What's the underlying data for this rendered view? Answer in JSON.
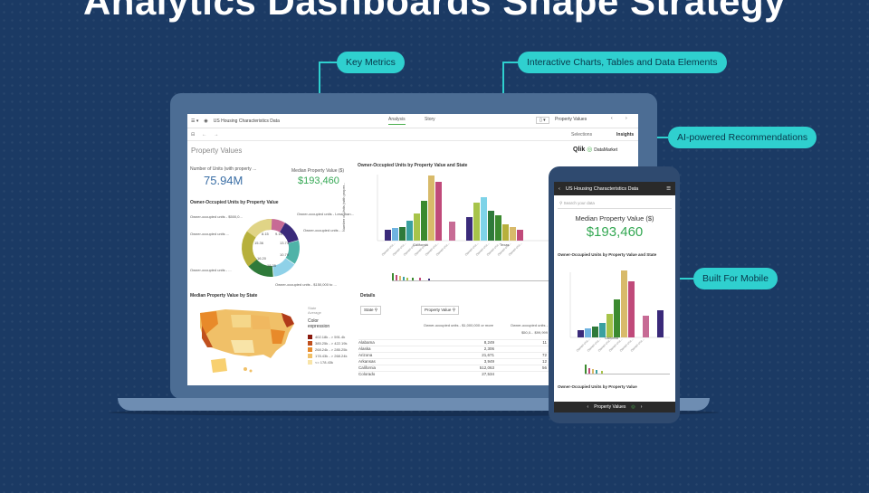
{
  "headline": "Analytics Dashboards Shape Strategy",
  "callouts": {
    "key_metrics": "Key Metrics",
    "interactive": "Interactive Charts, Tables and Data Elements",
    "ai": "AI-powered Recommendations",
    "mobile": "Built For Mobile"
  },
  "laptop": {
    "app_title": "US Housing Characteristics Data",
    "tabs": [
      "Analysis",
      "Story"
    ],
    "property_values_btn": "Property Values",
    "selections": "Selections",
    "insights": "Insights",
    "brand": "Qlik",
    "brand_sub": "DataMarket",
    "sheet_title": "Property Values",
    "kpi1_label": "Number of Units (with property ...",
    "kpi1_value": "75.94M",
    "kpi2_label": "Median Property Value ($)",
    "kpi2_value": "$193,460",
    "donut_title": "Owner-Occupied Units by Property Value",
    "donut_labels": [
      "Owner-occupied units - $500,0...",
      "Owner-occupied units - Less than...",
      "Owner-occupied units ...",
      "Owner-occupied units - ...",
      "Owner-occupied units - ...",
      "Owner-occupied units - $150,000 to ..."
    ],
    "donut_values": [
      "8.15",
      "9.16",
      "15.36",
      "13.74",
      "10.79",
      "16.20",
      "18.35"
    ],
    "bar_title": "Owner-Occupied Units by Property Value and State",
    "bar_ylabel": "Number of Units (with proper...",
    "bar_states": [
      "California",
      "Texas"
    ],
    "map_title": "Median Property Value by State",
    "map_legend_title": "Color expression",
    "map_legend_head": [
      "State",
      "Average"
    ],
    "map_legend": [
      "402.18k - > 591.4k",
      "385.25k - > 422.19k",
      "268.24k - > 285.25k",
      "178.43k - > 268.24k",
      "<= 178.43k"
    ],
    "details_title": "Details",
    "col_state": "State",
    "col_pv": "Property Value",
    "table_head": [
      "Owner-occupied units - $1,000,000 or more",
      "Owner-occupied units - $50,0... $99,999"
    ],
    "rows": [
      {
        "state": "Alabama",
        "v1": "8,249",
        "v2": "11"
      },
      {
        "state": "Alaska",
        "v1": "2,306",
        "v2": ""
      },
      {
        "state": "Arizona",
        "v1": "21,671",
        "v2": "72"
      },
      {
        "state": "Arkansas",
        "v1": "3,949",
        "v2": "12"
      },
      {
        "state": "California",
        "v1": "512,063",
        "v2": "56"
      },
      {
        "state": "Colorado",
        "v1": "27,534",
        "v2": ""
      }
    ]
  },
  "phone": {
    "title": "US Housing Characteristics Data",
    "search_placeholder": "Search your data",
    "kpi_label": "Median Property Value ($)",
    "kpi_value": "$193,460",
    "chart_title": "Owner-Occupied Units by Property Value and State",
    "chart_x": "California",
    "bottom_title": "Owner-Occupied Units by Property Value",
    "footer": "Property Values"
  },
  "colors": {
    "background": "#1b3a64",
    "callout": "#2fd0cf",
    "kpi_blue": "#3a6ea5",
    "kpi_green": "#34a853"
  }
}
